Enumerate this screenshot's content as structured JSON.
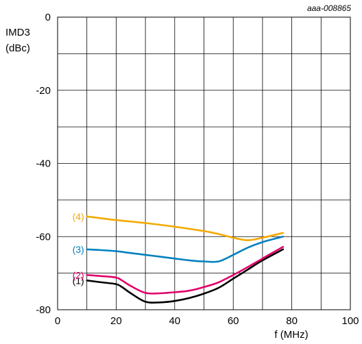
{
  "chart_data": {
    "type": "line",
    "title": "",
    "code": "aaa-008865",
    "ylabel_line1": "IMD3",
    "ylabel_line2": "(dBc)",
    "xlabel": "f (MHz)",
    "xlim": [
      0,
      100
    ],
    "ylim": [
      -80,
      0
    ],
    "x_ticks": [
      0,
      20,
      40,
      60,
      80,
      100
    ],
    "y_ticks": [
      0,
      -20,
      -40,
      -60,
      -80
    ],
    "x_grid_step": 10,
    "y_grid_step": 10,
    "grid": true,
    "series": [
      {
        "name": "(1)",
        "color": "#000000",
        "x": [
          10,
          15,
          20,
          22,
          25,
          30,
          35,
          40,
          45,
          50,
          55,
          60,
          65,
          70,
          77
        ],
        "y": [
          -72,
          -72.5,
          -73,
          -73.8,
          -75.5,
          -77.8,
          -78,
          -77.6,
          -76.8,
          -75.6,
          -74,
          -71.5,
          -69,
          -66.5,
          -63.5
        ]
      },
      {
        "name": "(2)",
        "color": "#e2006a",
        "x": [
          10,
          15,
          20,
          22,
          25,
          30,
          35,
          40,
          45,
          50,
          55,
          60,
          65,
          70,
          77
        ],
        "y": [
          -70.5,
          -70.8,
          -71.2,
          -72,
          -73.5,
          -75.4,
          -75.5,
          -75.2,
          -74.8,
          -73.8,
          -72.5,
          -70.5,
          -68.3,
          -66,
          -62.8
        ]
      },
      {
        "name": "(3)",
        "color": "#0080c0",
        "x": [
          10,
          15,
          20,
          25,
          30,
          35,
          40,
          45,
          50,
          55,
          60,
          65,
          70,
          77
        ],
        "y": [
          -63.5,
          -63.7,
          -64,
          -64.5,
          -65,
          -65.5,
          -66,
          -66.5,
          -66.8,
          -66.8,
          -65,
          -63,
          -61.5,
          -60
        ]
      },
      {
        "name": "(4)",
        "color": "#f4a900",
        "x": [
          10,
          20,
          30,
          40,
          50,
          55,
          60,
          65,
          70,
          77
        ],
        "y": [
          -54.5,
          -55.5,
          -56.3,
          -57.3,
          -58.5,
          -59.3,
          -60.3,
          -61,
          -60.3,
          -59
        ]
      }
    ]
  }
}
